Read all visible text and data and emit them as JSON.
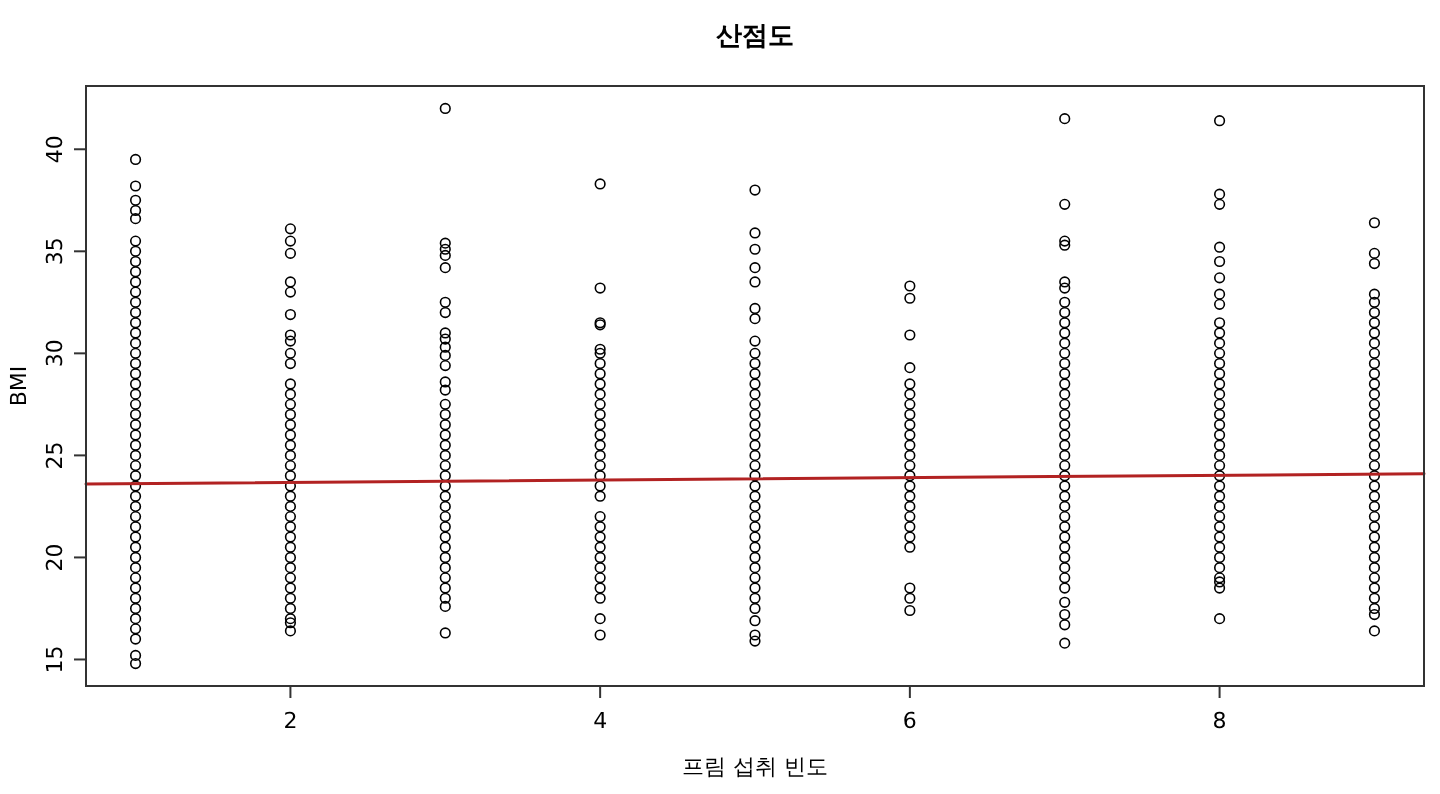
{
  "chart_data": {
    "type": "scatter",
    "title": "산점도",
    "xlabel": "프림 섭취 빈도",
    "ylabel": "BMI",
    "xlim": [
      0.68,
      9.32
    ],
    "ylim": [
      13.7,
      43.1
    ],
    "xticks": [
      2,
      4,
      6,
      8
    ],
    "yticks": [
      15,
      20,
      25,
      30,
      35,
      40
    ],
    "grid": false,
    "marker": "circle",
    "series": [
      {
        "color": "#000000",
        "x": [
          1,
          1,
          1,
          1,
          1,
          1,
          1,
          1,
          1,
          1,
          1,
          1,
          1,
          1,
          1,
          1,
          1,
          1,
          1,
          1,
          1,
          1,
          1,
          1,
          1,
          1,
          1,
          1,
          1,
          1,
          1,
          1,
          1,
          1,
          1,
          1,
          1,
          1,
          1,
          1,
          1,
          1,
          1,
          1,
          1,
          1,
          1
        ],
        "values": [
          14.8,
          15.2,
          16,
          16.5,
          17,
          17.5,
          18,
          18.5,
          19,
          19.5,
          20,
          20.5,
          21,
          21.5,
          22,
          22.5,
          23,
          23.5,
          24,
          24.5,
          25,
          25.5,
          26,
          26.5,
          27,
          27.5,
          28,
          28.5,
          29,
          29.5,
          30,
          30.5,
          31,
          31.5,
          32,
          32.5,
          33,
          33.5,
          34,
          34.5,
          35,
          35.5,
          36.6,
          37,
          37.5,
          38.2,
          39.5
        ]
      },
      {
        "color": "#000000",
        "x": [
          2,
          2,
          2,
          2,
          2,
          2,
          2,
          2,
          2,
          2,
          2,
          2,
          2,
          2,
          2,
          2,
          2,
          2,
          2,
          2,
          2,
          2,
          2,
          2,
          2,
          2,
          2,
          2,
          2,
          2,
          2,
          2,
          2,
          2,
          2,
          2
        ],
        "values": [
          36.1,
          35.5,
          34.9,
          33.5,
          33,
          31.9,
          30.9,
          30.6,
          30,
          29.5,
          28.5,
          28,
          27.5,
          27,
          26.5,
          26,
          25.5,
          25,
          24.5,
          24,
          23.5,
          23,
          22.5,
          22,
          21.5,
          21,
          20.5,
          20,
          19.5,
          19,
          18.5,
          18,
          17.5,
          17,
          16.8,
          16.4
        ]
      },
      {
        "color": "#000000",
        "x": [
          3,
          3,
          3,
          3,
          3,
          3,
          3,
          3,
          3,
          3,
          3,
          3,
          3,
          3,
          3,
          3,
          3,
          3,
          3,
          3,
          3,
          3,
          3,
          3,
          3,
          3,
          3,
          3,
          3,
          3,
          3,
          3,
          3,
          3,
          3,
          3
        ],
        "values": [
          42,
          35.4,
          35.1,
          34.8,
          34.2,
          32.5,
          32,
          31,
          30.7,
          30.3,
          29.9,
          29.4,
          28.6,
          28.2,
          27.5,
          27,
          26.5,
          26,
          25.5,
          25,
          24.5,
          24,
          23.5,
          23,
          22.5,
          22,
          21.5,
          21,
          20.5,
          20,
          19.5,
          19,
          18.5,
          18,
          17.6,
          16.3
        ]
      },
      {
        "color": "#000000",
        "x": [
          4,
          4,
          4,
          4,
          4,
          4,
          4,
          4,
          4,
          4,
          4,
          4,
          4,
          4,
          4,
          4,
          4,
          4,
          4,
          4,
          4,
          4,
          4,
          4,
          4,
          4,
          4,
          4,
          4,
          4,
          4
        ],
        "values": [
          38.3,
          33.2,
          31.5,
          31.4,
          30.2,
          30,
          29.5,
          29,
          28.5,
          28,
          27.5,
          27,
          26.5,
          26,
          25.5,
          25,
          24.5,
          24,
          23.5,
          23,
          22,
          21.5,
          21,
          20.5,
          20,
          19.5,
          19,
          18.5,
          18,
          17,
          16.2
        ]
      },
      {
        "color": "#000000",
        "x": [
          5,
          5,
          5,
          5,
          5,
          5,
          5,
          5,
          5,
          5,
          5,
          5,
          5,
          5,
          5,
          5,
          5,
          5,
          5,
          5,
          5,
          5,
          5,
          5,
          5,
          5,
          5,
          5,
          5,
          5,
          5,
          5,
          5,
          5,
          5,
          5,
          5
        ],
        "values": [
          38,
          35.9,
          35.1,
          34.2,
          33.5,
          32.2,
          31.7,
          30.6,
          30,
          29.5,
          29,
          28.5,
          28,
          27.5,
          27,
          26.5,
          26,
          25.5,
          25,
          24.5,
          24,
          23.5,
          23,
          22.5,
          22,
          21.5,
          21,
          20.5,
          20,
          19.5,
          19,
          18.5,
          18,
          17.5,
          16.9,
          16.2,
          15.9
        ]
      },
      {
        "color": "#000000",
        "x": [
          6,
          6,
          6,
          6,
          6,
          6,
          6,
          6,
          6,
          6,
          6,
          6,
          6,
          6,
          6,
          6,
          6,
          6,
          6,
          6,
          6,
          6,
          6,
          6
        ],
        "values": [
          33.3,
          32.7,
          30.9,
          29.3,
          28.5,
          28,
          27.5,
          27,
          26.5,
          26,
          25.5,
          25,
          24.5,
          24,
          23.5,
          23,
          22.5,
          22,
          21.5,
          21,
          20.5,
          18.5,
          18,
          17.4
        ]
      },
      {
        "color": "#000000",
        "x": [
          7,
          7,
          7,
          7,
          7,
          7,
          7,
          7,
          7,
          7,
          7,
          7,
          7,
          7,
          7,
          7,
          7,
          7,
          7,
          7,
          7,
          7,
          7,
          7,
          7,
          7,
          7,
          7,
          7,
          7,
          7,
          7,
          7,
          7,
          7,
          7,
          7,
          7,
          7
        ],
        "values": [
          41.5,
          37.3,
          35.5,
          35.3,
          33.5,
          33.2,
          32.5,
          32,
          31.5,
          31,
          30.5,
          30,
          29.5,
          29,
          28.5,
          28,
          27.5,
          27,
          26.5,
          26,
          25.5,
          25,
          24.5,
          24,
          23.5,
          23,
          22.5,
          22,
          21.5,
          21,
          20.5,
          20,
          19.5,
          19,
          18.5,
          17.8,
          17.2,
          16.7,
          15.8
        ]
      },
      {
        "color": "#000000",
        "x": [
          8,
          8,
          8,
          8,
          8,
          8,
          8,
          8,
          8,
          8,
          8,
          8,
          8,
          8,
          8,
          8,
          8,
          8,
          8,
          8,
          8,
          8,
          8,
          8,
          8,
          8,
          8,
          8,
          8,
          8,
          8,
          8,
          8,
          8,
          8,
          8,
          8
        ],
        "values": [
          41.4,
          37.8,
          37.3,
          35.2,
          34.5,
          33.7,
          32.9,
          32.4,
          31.5,
          31,
          30.5,
          30,
          29.5,
          29,
          28.5,
          28,
          27.5,
          27,
          26.5,
          26,
          25.5,
          25,
          24.5,
          24,
          23.5,
          23,
          22.5,
          22,
          21.5,
          21,
          20.5,
          20,
          19.5,
          19,
          18.5,
          18.8,
          17
        ]
      },
      {
        "color": "#000000",
        "x": [
          9,
          9,
          9,
          9,
          9,
          9,
          9,
          9,
          9,
          9,
          9,
          9,
          9,
          9,
          9,
          9,
          9,
          9,
          9,
          9,
          9,
          9,
          9,
          9,
          9,
          9,
          9,
          9,
          9,
          9,
          9,
          9,
          9,
          9,
          9,
          9,
          9
        ],
        "values": [
          36.4,
          34.9,
          34.4,
          32.9,
          32.5,
          32,
          31.5,
          31,
          30.5,
          30,
          29.5,
          29,
          28.5,
          28,
          27.5,
          27,
          26.5,
          26,
          25.5,
          25,
          24.5,
          24,
          23.5,
          23,
          22.5,
          22,
          21.5,
          21,
          20.5,
          20,
          19.5,
          19,
          18.5,
          18,
          17.5,
          17.2,
          16.4
        ]
      },
      {
        "type": "line",
        "marker": "none",
        "color": "#b22222",
        "x": [
          0.68,
          9.32
        ],
        "values": [
          23.6,
          24.1
        ]
      }
    ]
  }
}
